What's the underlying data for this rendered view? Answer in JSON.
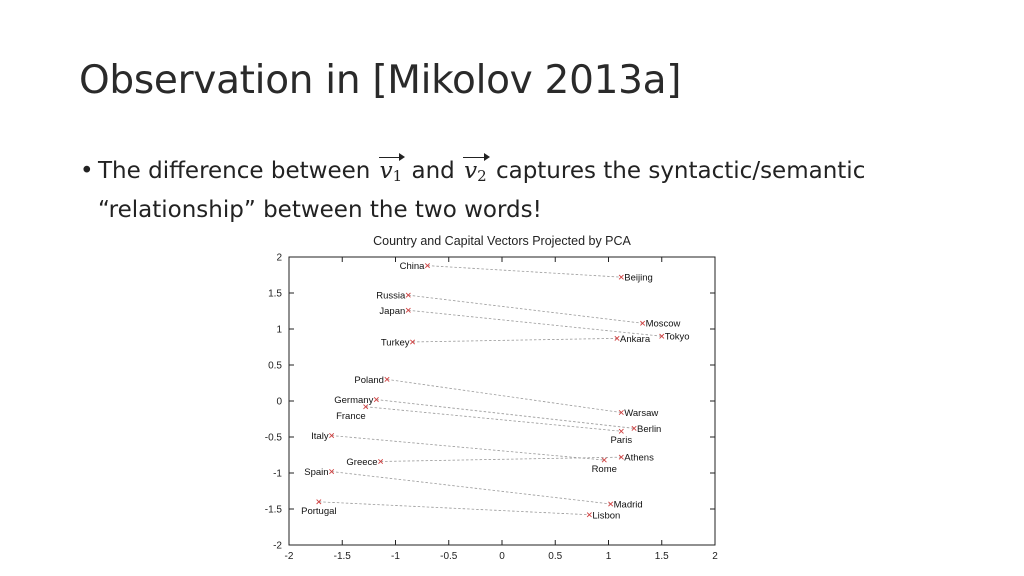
{
  "slide": {
    "title": "Observation in [Mikolov 2013a]",
    "bullet": {
      "marker": "•",
      "part1": "The difference between ",
      "v1_base": "v",
      "v1_sub": "1",
      "part2": " and ",
      "v2_base": "v",
      "v2_sub": "2",
      "part3": " captures the syntactic/semantic “relationship” between the two words!"
    }
  },
  "chart_data": {
    "type": "scatter",
    "title": "Country and Capital Vectors Projected by PCA",
    "xlim": [
      -2,
      2
    ],
    "ylim": [
      -2,
      2
    ],
    "xticks": [
      -2,
      -1.5,
      -1,
      -0.5,
      0,
      0.5,
      1,
      1.5,
      2
    ],
    "yticks": [
      -2,
      -1.5,
      -1,
      -0.5,
      0,
      0.5,
      1,
      1.5,
      2
    ],
    "xtick_labels": [
      "-2",
      "-1.5",
      "-1",
      "-0.5",
      "0",
      "0.5",
      "1",
      "1.5",
      "2"
    ],
    "ytick_labels": [
      "-2",
      "-1.5",
      "-1",
      "-0.5",
      "0",
      "0.5",
      "1",
      "1.5",
      "2"
    ],
    "grid": false,
    "colors": {
      "marker": "#d04040",
      "link": "#9a9a9a",
      "axis": "#222222"
    },
    "points": [
      {
        "label": "China",
        "x": -0.7,
        "y": 1.88,
        "anchor": "end"
      },
      {
        "label": "Russia",
        "x": -0.88,
        "y": 1.47,
        "anchor": "end"
      },
      {
        "label": "Japan",
        "x": -0.88,
        "y": 1.26,
        "anchor": "end"
      },
      {
        "label": "Turkey",
        "x": -0.84,
        "y": 0.82,
        "anchor": "end"
      },
      {
        "label": "Poland",
        "x": -1.08,
        "y": 0.3,
        "anchor": "end"
      },
      {
        "label": "Germany",
        "x": -1.18,
        "y": 0.02,
        "anchor": "end"
      },
      {
        "label": "France",
        "x": -1.28,
        "y": -0.08,
        "anchor": "end-below"
      },
      {
        "label": "Italy",
        "x": -1.6,
        "y": -0.48,
        "anchor": "end"
      },
      {
        "label": "Greece",
        "x": -1.14,
        "y": -0.84,
        "anchor": "end"
      },
      {
        "label": "Spain",
        "x": -1.6,
        "y": -0.98,
        "anchor": "end"
      },
      {
        "label": "Portugal",
        "x": -1.72,
        "y": -1.4,
        "anchor": "below"
      },
      {
        "label": "Beijing",
        "x": 1.12,
        "y": 1.72,
        "anchor": "start"
      },
      {
        "label": "Moscow",
        "x": 1.32,
        "y": 1.08,
        "anchor": "start"
      },
      {
        "label": "Tokyo",
        "x": 1.5,
        "y": 0.9,
        "anchor": "start"
      },
      {
        "label": "Ankara",
        "x": 1.08,
        "y": 0.87,
        "anchor": "start"
      },
      {
        "label": "Warsaw",
        "x": 1.12,
        "y": -0.16,
        "anchor": "start"
      },
      {
        "label": "Berlin",
        "x": 1.24,
        "y": -0.38,
        "anchor": "start"
      },
      {
        "label": "Paris",
        "x": 1.12,
        "y": -0.42,
        "anchor": "below"
      },
      {
        "label": "Athens",
        "x": 1.12,
        "y": -0.78,
        "anchor": "start"
      },
      {
        "label": "Rome",
        "x": 0.96,
        "y": -0.82,
        "anchor": "below"
      },
      {
        "label": "Madrid",
        "x": 1.02,
        "y": -1.43,
        "anchor": "start"
      },
      {
        "label": "Lisbon",
        "x": 0.82,
        "y": -1.58,
        "anchor": "start"
      }
    ],
    "links": [
      [
        "China",
        "Beijing"
      ],
      [
        "Russia",
        "Moscow"
      ],
      [
        "Japan",
        "Tokyo"
      ],
      [
        "Turkey",
        "Ankara"
      ],
      [
        "Poland",
        "Warsaw"
      ],
      [
        "Germany",
        "Berlin"
      ],
      [
        "France",
        "Paris"
      ],
      [
        "Italy",
        "Rome"
      ],
      [
        "Greece",
        "Athens"
      ],
      [
        "Spain",
        "Madrid"
      ],
      [
        "Portugal",
        "Lisbon"
      ]
    ]
  }
}
